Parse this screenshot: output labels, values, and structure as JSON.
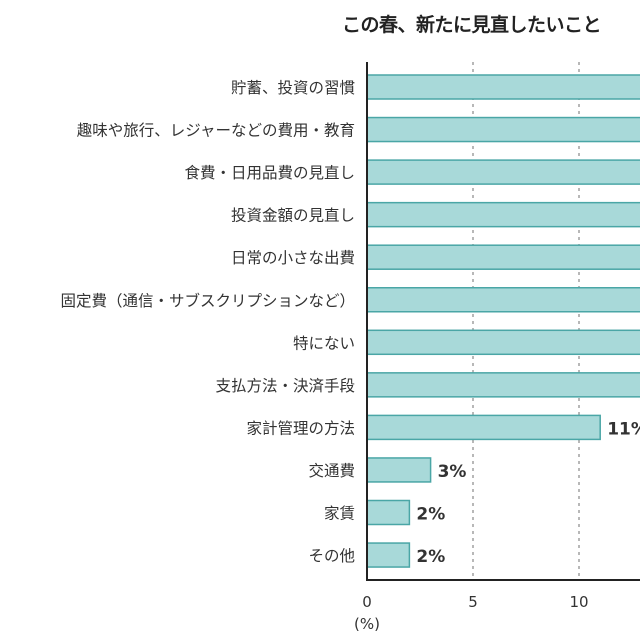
{
  "chart_data": {
    "type": "bar",
    "orientation": "horizontal",
    "title": "この春、新たに見直したいこと",
    "xlabel": "(%)",
    "xticks": [
      "0",
      "5",
      "10"
    ],
    "grid": "vertical dotted",
    "categories": [
      "貯蓄、投資の習慣",
      "趣味や旅行、レジャーなどの費用・教育",
      "食費・日用品費の見直し",
      "投資金額の見直し",
      "日常の小さな出費",
      "固定費（通信・サブスクリプションなど）",
      "特にない",
      "支払方法・決済手段",
      "家計管理の方法",
      "交通費",
      "家賃",
      "その他"
    ],
    "values": [
      null,
      null,
      null,
      null,
      null,
      null,
      null,
      null,
      11,
      3,
      2,
      2
    ],
    "value_labels": [
      "",
      "",
      "",
      "",
      "",
      "",
      "",
      "",
      "11%",
      "3%",
      "2%",
      "2%"
    ],
    "note_values": "bars with null extend beyond the visible crop; their values are not visible",
    "colors": {
      "bar_fill": "#a8d9d9",
      "bar_edge": "#4aa6a6"
    }
  }
}
